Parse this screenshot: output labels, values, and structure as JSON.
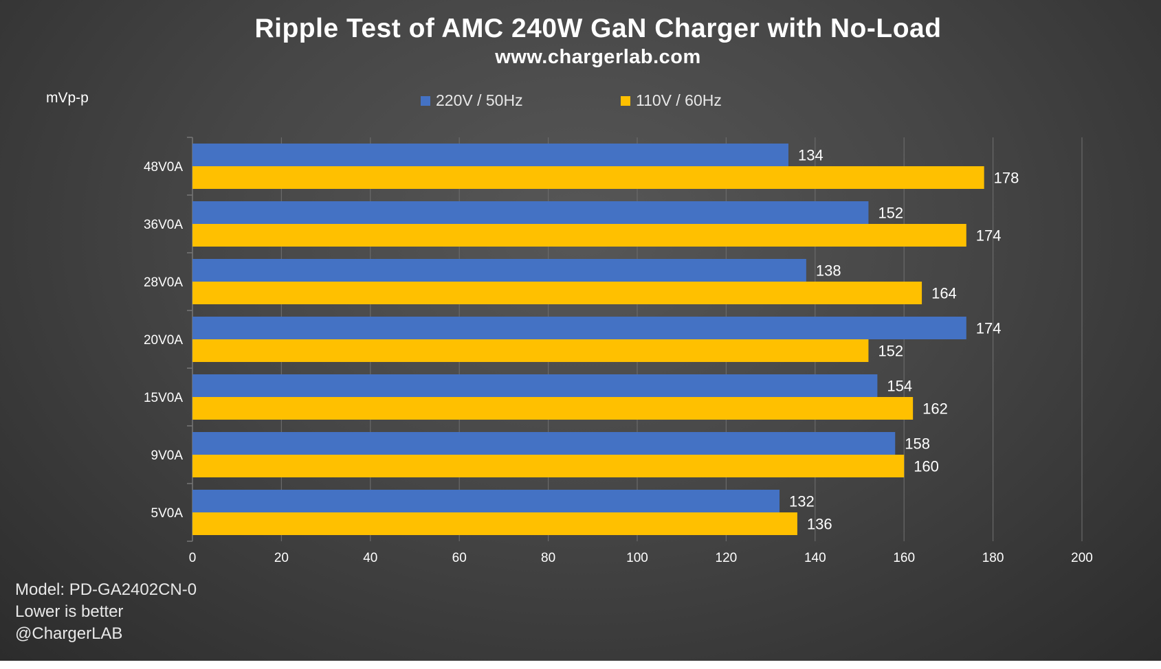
{
  "chart_data": {
    "type": "bar",
    "orientation": "horizontal",
    "title": "Ripple Test of AMC 240W GaN Charger with No-Load",
    "subtitle": "www.chargerlab.com",
    "ylabel": "mVp-p",
    "categories": [
      "48V0A",
      "36V0A",
      "28V0A",
      "20V0A",
      "15V0A",
      "9V0A",
      "5V0A"
    ],
    "series": [
      {
        "name": "220V / 50Hz",
        "color": "#4472C4",
        "values": [
          134,
          152,
          138,
          174,
          154,
          158,
          132
        ]
      },
      {
        "name": "110V / 60Hz",
        "color": "#FFC000",
        "values": [
          178,
          174,
          164,
          152,
          162,
          160,
          136
        ]
      }
    ],
    "xlim": [
      0,
      200
    ],
    "xticks": [
      "0",
      "20",
      "40",
      "60",
      "80",
      "100",
      "120",
      "140",
      "160",
      "180",
      "200"
    ],
    "grid": true,
    "legend": "top-center"
  },
  "notes": [
    "Model: PD-GA2402CN-0",
    "Lower is better",
    "@ChargerLAB"
  ]
}
